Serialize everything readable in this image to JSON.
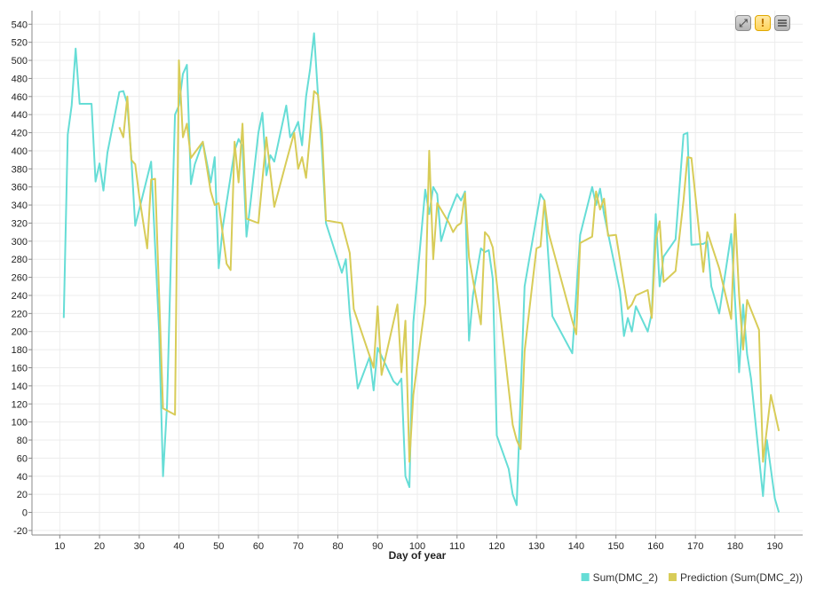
{
  "chart_data": {
    "type": "line",
    "xlabel": "Day of year",
    "ylabel": "",
    "xlim": [
      3,
      197
    ],
    "ylim": [
      -25,
      555
    ],
    "xticks": [
      10,
      20,
      30,
      40,
      50,
      60,
      70,
      80,
      90,
      100,
      110,
      120,
      130,
      140,
      150,
      160,
      170,
      180,
      190
    ],
    "yticks": [
      -20,
      0,
      20,
      40,
      60,
      80,
      100,
      120,
      140,
      160,
      180,
      200,
      220,
      240,
      260,
      280,
      300,
      320,
      340,
      360,
      380,
      400,
      420,
      440,
      460,
      480,
      500,
      520,
      540
    ],
    "grid": true,
    "legend_position": "bottom-right",
    "series": [
      {
        "name": "Sum(DMC_2)",
        "color": "#66ddd6",
        "points": [
          [
            11,
            215
          ],
          [
            12,
            418
          ],
          [
            13,
            450
          ],
          [
            14,
            513
          ],
          [
            15,
            452
          ],
          [
            18,
            452
          ],
          [
            19,
            366
          ],
          [
            20,
            386
          ],
          [
            21,
            356
          ],
          [
            22,
            398
          ],
          [
            25,
            465
          ],
          [
            26,
            466
          ],
          [
            27,
            452
          ],
          [
            28,
            392
          ],
          [
            29,
            317
          ],
          [
            30,
            335
          ],
          [
            33,
            388
          ],
          [
            35,
            200
          ],
          [
            36,
            40
          ],
          [
            37,
            118
          ],
          [
            38,
            285
          ],
          [
            39,
            440
          ],
          [
            40,
            450
          ],
          [
            41,
            485
          ],
          [
            42,
            495
          ],
          [
            43,
            363
          ],
          [
            44,
            385
          ],
          [
            46,
            410
          ],
          [
            48,
            365
          ],
          [
            49,
            393
          ],
          [
            50,
            270
          ],
          [
            51,
            315
          ],
          [
            54,
            400
          ],
          [
            55,
            413
          ],
          [
            56,
            405
          ],
          [
            57,
            305
          ],
          [
            58,
            342
          ],
          [
            60,
            420
          ],
          [
            61,
            442
          ],
          [
            62,
            373
          ],
          [
            63,
            395
          ],
          [
            64,
            388
          ],
          [
            67,
            450
          ],
          [
            68,
            415
          ],
          [
            69,
            422
          ],
          [
            70,
            432
          ],
          [
            71,
            406
          ],
          [
            72,
            460
          ],
          [
            73,
            490
          ],
          [
            74,
            530
          ],
          [
            75,
            462
          ],
          [
            76,
            400
          ],
          [
            77,
            320
          ],
          [
            81,
            265
          ],
          [
            82,
            280
          ],
          [
            83,
            220
          ],
          [
            85,
            137
          ],
          [
            88,
            172
          ],
          [
            89,
            135
          ],
          [
            90,
            182
          ],
          [
            94,
            145
          ],
          [
            95,
            141
          ],
          [
            96,
            148
          ],
          [
            97,
            40
          ],
          [
            98,
            28
          ],
          [
            99,
            210
          ],
          [
            102,
            357
          ],
          [
            103,
            330
          ],
          [
            104,
            360
          ],
          [
            105,
            352
          ],
          [
            106,
            300
          ],
          [
            108,
            330
          ],
          [
            110,
            352
          ],
          [
            111,
            345
          ],
          [
            112,
            355
          ],
          [
            113,
            190
          ],
          [
            114,
            240
          ],
          [
            116,
            292
          ],
          [
            117,
            288
          ],
          [
            118,
            290
          ],
          [
            119,
            258
          ],
          [
            120,
            85
          ],
          [
            123,
            48
          ],
          [
            124,
            20
          ],
          [
            125,
            8
          ],
          [
            127,
            250
          ],
          [
            131,
            352
          ],
          [
            132,
            345
          ],
          [
            134,
            217
          ],
          [
            139,
            176
          ],
          [
            141,
            307
          ],
          [
            144,
            360
          ],
          [
            145,
            340
          ],
          [
            146,
            358
          ],
          [
            147,
            330
          ],
          [
            151,
            245
          ],
          [
            152,
            195
          ],
          [
            153,
            215
          ],
          [
            154,
            200
          ],
          [
            155,
            228
          ],
          [
            158,
            200
          ],
          [
            159,
            220
          ],
          [
            160,
            330
          ],
          [
            161,
            250
          ],
          [
            162,
            283
          ],
          [
            165,
            302
          ],
          [
            167,
            418
          ],
          [
            168,
            420
          ],
          [
            169,
            296
          ],
          [
            172,
            297
          ],
          [
            173,
            300
          ],
          [
            174,
            250
          ],
          [
            176,
            220
          ],
          [
            179,
            308
          ],
          [
            181,
            155
          ],
          [
            182,
            230
          ],
          [
            183,
            175
          ],
          [
            184,
            148
          ],
          [
            187,
            18
          ],
          [
            188,
            80
          ],
          [
            190,
            15
          ],
          [
            191,
            0
          ]
        ]
      },
      {
        "name": "Prediction (Sum(DMC_2))",
        "color": "#d8cc58",
        "points": [
          [
            25,
            426
          ],
          [
            26,
            415
          ],
          [
            27,
            460
          ],
          [
            28,
            390
          ],
          [
            29,
            385
          ],
          [
            30,
            350
          ],
          [
            32,
            292
          ],
          [
            33,
            368
          ],
          [
            34,
            369
          ],
          [
            36,
            115
          ],
          [
            39,
            108
          ],
          [
            40,
            500
          ],
          [
            41,
            415
          ],
          [
            42,
            430
          ],
          [
            43,
            392
          ],
          [
            44,
            398
          ],
          [
            46,
            410
          ],
          [
            48,
            355
          ],
          [
            49,
            340
          ],
          [
            50,
            342
          ],
          [
            52,
            275
          ],
          [
            53,
            268
          ],
          [
            54,
            410
          ],
          [
            55,
            365
          ],
          [
            56,
            430
          ],
          [
            57,
            325
          ],
          [
            60,
            320
          ],
          [
            62,
            415
          ],
          [
            64,
            338
          ],
          [
            67,
            388
          ],
          [
            69,
            420
          ],
          [
            70,
            380
          ],
          [
            71,
            393
          ],
          [
            72,
            370
          ],
          [
            74,
            466
          ],
          [
            75,
            462
          ],
          [
            76,
            420
          ],
          [
            77,
            323
          ],
          [
            81,
            320
          ],
          [
            83,
            287
          ],
          [
            84,
            225
          ],
          [
            89,
            160
          ],
          [
            90,
            228
          ],
          [
            91,
            152
          ],
          [
            95,
            230
          ],
          [
            96,
            155
          ],
          [
            97,
            212
          ],
          [
            98,
            56
          ],
          [
            99,
            130
          ],
          [
            102,
            231
          ],
          [
            103,
            400
          ],
          [
            104,
            280
          ],
          [
            105,
            342
          ],
          [
            108,
            320
          ],
          [
            109,
            310
          ],
          [
            110,
            317
          ],
          [
            111,
            320
          ],
          [
            112,
            353
          ],
          [
            113,
            282
          ],
          [
            116,
            208
          ],
          [
            117,
            310
          ],
          [
            118,
            305
          ],
          [
            119,
            293
          ],
          [
            124,
            97
          ],
          [
            125,
            80
          ],
          [
            126,
            70
          ],
          [
            127,
            178
          ],
          [
            129,
            255
          ],
          [
            130,
            292
          ],
          [
            131,
            294
          ],
          [
            132,
            345
          ],
          [
            133,
            310
          ],
          [
            139,
            212
          ],
          [
            140,
            197
          ],
          [
            141,
            298
          ],
          [
            144,
            305
          ],
          [
            145,
            355
          ],
          [
            146,
            335
          ],
          [
            147,
            347
          ],
          [
            148,
            306
          ],
          [
            150,
            307
          ],
          [
            153,
            225
          ],
          [
            154,
            230
          ],
          [
            155,
            240
          ],
          [
            158,
            246
          ],
          [
            159,
            215
          ],
          [
            160,
            301
          ],
          [
            161,
            322
          ],
          [
            162,
            255
          ],
          [
            165,
            267
          ],
          [
            167,
            345
          ],
          [
            168,
            393
          ],
          [
            169,
            392
          ],
          [
            172,
            266
          ],
          [
            173,
            310
          ],
          [
            176,
            270
          ],
          [
            179,
            214
          ],
          [
            180,
            330
          ],
          [
            181,
            240
          ],
          [
            182,
            180
          ],
          [
            183,
            235
          ],
          [
            186,
            202
          ],
          [
            187,
            56
          ],
          [
            189,
            130
          ],
          [
            191,
            90
          ]
        ]
      }
    ]
  },
  "toolbar": {
    "fullscreen_icon": "expand-icon",
    "warning_icon": "warning-icon",
    "menu_icon": "menu-icon",
    "fullscreen_glyph": "⤢",
    "warning_glyph": "!"
  }
}
